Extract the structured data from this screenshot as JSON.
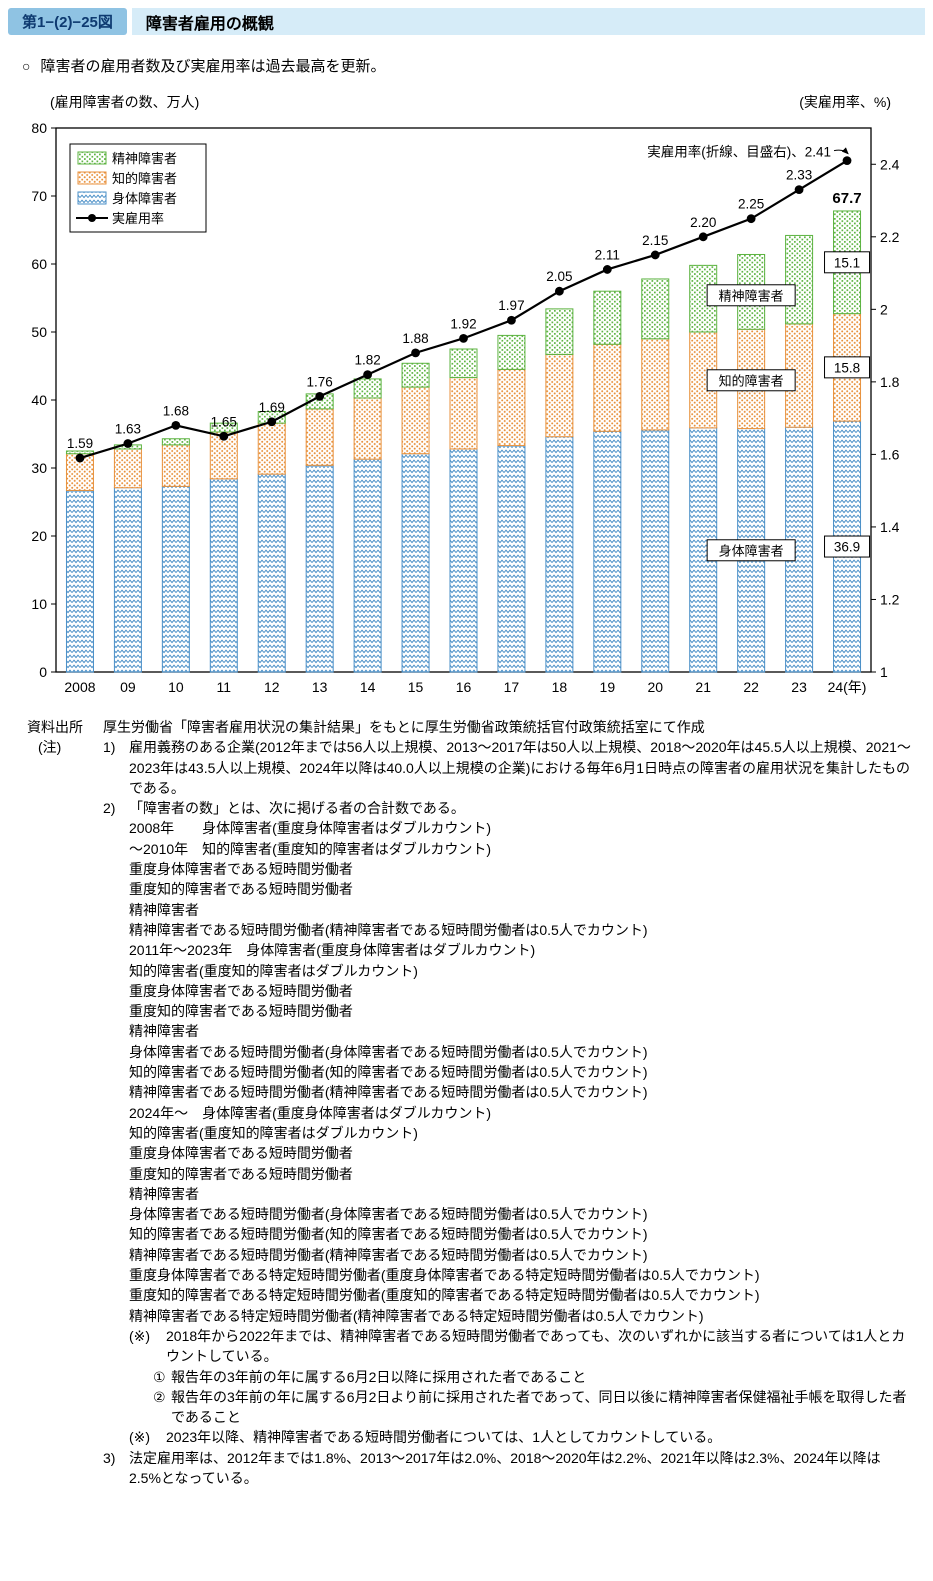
{
  "header": {
    "figure_number": "第1−(2)−25図",
    "title": "障害者雇用の概観"
  },
  "lead": {
    "bullet": "○",
    "text": "障害者の雇用者数及び実雇用率は過去最高を更新。"
  },
  "chart_data": {
    "type": "bar+line",
    "title": "障害者雇用の概観",
    "left_axis_label": "(雇用障害者の数、万人)",
    "right_axis_label": "(実雇用率、%)",
    "left_axis": {
      "min": 0,
      "max": 80,
      "ticks": [
        0,
        10,
        20,
        30,
        40,
        50,
        60,
        70,
        80
      ]
    },
    "right_axis": {
      "min": 1,
      "max": 2.5,
      "ticks": [
        1,
        1.2,
        1.4,
        1.6,
        1.8,
        2,
        2.2,
        2.4
      ]
    },
    "categories": [
      "2008",
      "09",
      "10",
      "11",
      "12",
      "13",
      "14",
      "15",
      "16",
      "17",
      "18",
      "19",
      "20",
      "21",
      "22",
      "23",
      "24(年)"
    ],
    "series": [
      {
        "name": "身体障害者",
        "values": [
          26.7,
          27.1,
          27.3,
          28.4,
          29.1,
          30.4,
          31.3,
          32.1,
          32.8,
          33.3,
          34.6,
          35.4,
          35.6,
          35.9,
          35.8,
          36.0,
          36.9
        ]
      },
      {
        "name": "知的障害者",
        "values": [
          5.4,
          5.7,
          6.1,
          6.9,
          7.5,
          8.3,
          9.0,
          9.8,
          10.5,
          11.2,
          12.1,
          12.8,
          13.4,
          14.1,
          14.6,
          15.2,
          15.8
        ]
      },
      {
        "name": "精神障害者",
        "values": [
          0.4,
          0.6,
          0.9,
          1.3,
          1.7,
          2.2,
          2.8,
          3.5,
          4.2,
          5.0,
          6.7,
          7.8,
          8.8,
          9.8,
          11.0,
          13.0,
          15.1
        ]
      }
    ],
    "line": {
      "name": "実雇用率",
      "axis": "right",
      "values": [
        1.59,
        1.63,
        1.68,
        1.65,
        1.69,
        1.76,
        1.82,
        1.88,
        1.92,
        1.97,
        2.05,
        2.11,
        2.15,
        2.2,
        2.25,
        2.33,
        2.41
      ],
      "point_labels": [
        "1.59",
        "1.63",
        "1.68",
        "1.65",
        "1.69",
        "1.76",
        "1.82",
        "1.88",
        "1.92",
        "1.97",
        "2.05",
        "2.11",
        "2.15",
        "2.20",
        "2.25",
        "2.33",
        ""
      ]
    },
    "legend": [
      "精神障害者",
      "知的障害者",
      "身体障害者",
      "実雇用率"
    ],
    "legend_position": "top-left-inside",
    "grid": false,
    "colors": [
      "#4a8fc7",
      "#e8913c",
      "#5cb340"
    ],
    "line_color": "#000000",
    "annotations": {
      "line_label": "実雇用率(折線、目盛右)、2.41",
      "last_total": "67.7",
      "value_boxes": [
        {
          "label": "36.9",
          "series": 0
        },
        {
          "label": "15.8",
          "series": 1
        },
        {
          "label": "15.1",
          "series": 2
        }
      ],
      "series_boxes": [
        {
          "label": "精神障害者",
          "x_index": 14.5,
          "y_value": 55.4
        },
        {
          "label": "知的障害者",
          "x_index": 14.5,
          "y_value": 42.9
        },
        {
          "label": "身体障害者",
          "x_index": 14.5,
          "y_value": 17.9
        }
      ]
    }
  },
  "notes": {
    "source_label": "資料出所",
    "source_text": "厚生労働省「障害者雇用状況の集計結果」をもとに厚生労働省政策統括官付政策統括室にて作成",
    "note_label": "(注)",
    "items": [
      {
        "num": "1)",
        "indent": 0,
        "text": "雇用義務のある企業(2012年までは56人以上規模、2013〜2017年は50人以上規模、2018〜2020年は45.5人以上規模、2021〜2023年は43.5人以上規模、2024年以降は40.0人以上規模の企業)における毎年6月1日時点の障害者の雇用状況を集計したものである。"
      },
      {
        "num": "2)",
        "indent": 0,
        "text": "「障害者の数」とは、次に掲げる者の合計数である。"
      },
      {
        "indent": 1,
        "text": "2008年　　身体障害者(重度身体障害者はダブルカウント)"
      },
      {
        "indent": 1,
        "text": "〜2010年　知的障害者(重度知的障害者はダブルカウント)"
      },
      {
        "indent": 1,
        "text": "重度身体障害者である短時間労働者"
      },
      {
        "indent": 1,
        "text": "重度知的障害者である短時間労働者"
      },
      {
        "indent": 1,
        "text": "精神障害者"
      },
      {
        "indent": 1,
        "text": "精神障害者である短時間労働者(精神障害者である短時間労働者は0.5人でカウント)"
      },
      {
        "indent": 1,
        "text": "2011年〜2023年　身体障害者(重度身体障害者はダブルカウント)"
      },
      {
        "indent": 1,
        "text": "知的障害者(重度知的障害者はダブルカウント)"
      },
      {
        "indent": 1,
        "text": "重度身体障害者である短時間労働者"
      },
      {
        "indent": 1,
        "text": "重度知的障害者である短時間労働者"
      },
      {
        "indent": 1,
        "text": "精神障害者"
      },
      {
        "indent": 1,
        "text": "身体障害者である短時間労働者(身体障害者である短時間労働者は0.5人でカウント)"
      },
      {
        "indent": 1,
        "text": "知的障害者である短時間労働者(知的障害者である短時間労働者は0.5人でカウント)"
      },
      {
        "indent": 1,
        "text": "精神障害者である短時間労働者(精神障害者である短時間労働者は0.5人でカウント)"
      },
      {
        "indent": 1,
        "text": "2024年〜　身体障害者(重度身体障害者はダブルカウント)"
      },
      {
        "indent": 1,
        "text": "知的障害者(重度知的障害者はダブルカウント)"
      },
      {
        "indent": 1,
        "text": "重度身体障害者である短時間労働者"
      },
      {
        "indent": 1,
        "text": "重度知的障害者である短時間労働者"
      },
      {
        "indent": 1,
        "text": "精神障害者"
      },
      {
        "indent": 1,
        "text": "身体障害者である短時間労働者(身体障害者である短時間労働者は0.5人でカウント)"
      },
      {
        "indent": 1,
        "text": "知的障害者である短時間労働者(知的障害者である短時間労働者は0.5人でカウント)"
      },
      {
        "indent": 1,
        "text": "精神障害者である短時間労働者(精神障害者である短時間労働者は0.5人でカウント)"
      },
      {
        "indent": 1,
        "text": "重度身体障害者である特定短時間労働者(重度身体障害者である特定短時間労働者は0.5人でカウント)"
      },
      {
        "indent": 1,
        "text": "重度知的障害者である特定短時間労働者(重度知的障害者である特定短時間労働者は0.5人でカウント)"
      },
      {
        "indent": 1,
        "text": "精神障害者である特定短時間労働者(精神障害者である特定短時間労働者は0.5人でカウント)"
      },
      {
        "num": "(※)",
        "numw": 37,
        "indent": 1,
        "text": "2018年から2022年までは、精神障害者である短時間労働者であっても、次のいずれかに該当する者については1人とカウントしている。"
      },
      {
        "num": "①",
        "numw": 18,
        "indent": 2,
        "text": "報告年の3年前の年に属する6月2日以降に採用された者であること"
      },
      {
        "num": "②",
        "numw": 18,
        "indent": 2,
        "text": "報告年の3年前の年に属する6月2日より前に採用された者であって、同日以後に精神障害者保健福祉手帳を取得した者であること"
      },
      {
        "num": "(※)",
        "numw": 37,
        "indent": 1,
        "text": "2023年以降、精神障害者である短時間労働者については、1人としてカウントしている。"
      },
      {
        "num": "3)",
        "indent": 0,
        "text": "法定雇用率は、2012年までは1.8%、2013〜2017年は2.0%、2018〜2020年は2.2%、2021年以降は2.3%、2024年以降は2.5%となっている。"
      }
    ]
  }
}
